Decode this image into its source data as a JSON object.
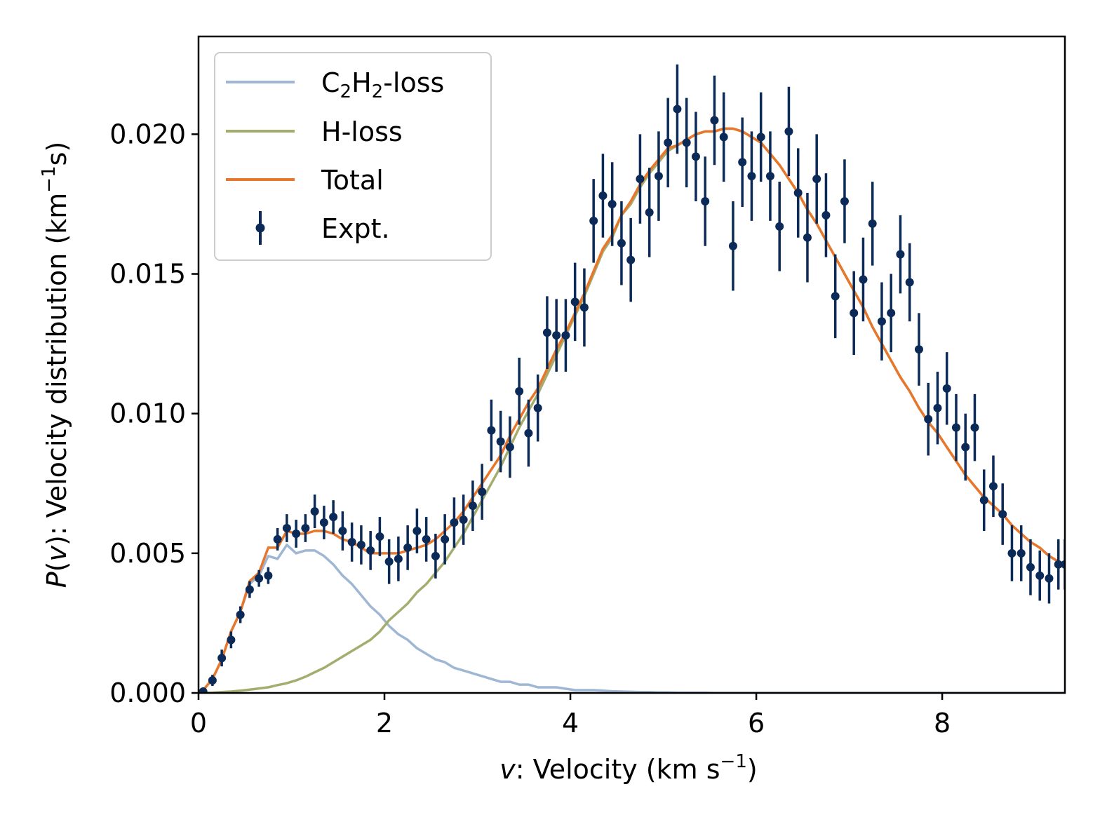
{
  "chart_data": {
    "type": "line",
    "title": "",
    "xlabel_italic": "v",
    "xlabel_rest": ": Velocity (km s",
    "xlabel_sup": "−1",
    "xlabel_close": ")",
    "ylabel_italic": "P",
    "ylabel_paren_open": "(",
    "ylabel_italic_v": "v",
    "ylabel_rest": "): Velocity distribution (km",
    "ylabel_sup": "−1",
    "ylabel_close": "s)",
    "xlim": [
      0,
      9.32
    ],
    "ylim": [
      0,
      0.0235
    ],
    "xticks": [
      0,
      2,
      4,
      6,
      8
    ],
    "xtick_labels": [
      "0",
      "2",
      "4",
      "6",
      "8"
    ],
    "yticks": [
      0,
      0.005,
      0.01,
      0.015,
      0.02
    ],
    "ytick_labels": [
      "0.000",
      "0.005",
      "0.010",
      "0.015",
      "0.020"
    ],
    "legend_position": "top-left",
    "x": [
      0.05,
      0.15,
      0.25,
      0.35,
      0.45,
      0.55,
      0.65,
      0.75,
      0.85,
      0.95,
      1.05,
      1.15,
      1.25,
      1.35,
      1.45,
      1.55,
      1.65,
      1.75,
      1.85,
      1.95,
      2.05,
      2.15,
      2.25,
      2.35,
      2.45,
      2.55,
      2.65,
      2.75,
      2.85,
      2.95,
      3.05,
      3.15,
      3.25,
      3.35,
      3.45,
      3.55,
      3.65,
      3.75,
      3.85,
      3.95,
      4.05,
      4.15,
      4.25,
      4.35,
      4.45,
      4.55,
      4.65,
      4.75,
      4.85,
      4.95,
      5.05,
      5.15,
      5.25,
      5.35,
      5.45,
      5.55,
      5.65,
      5.75,
      5.85,
      5.95,
      6.05,
      6.15,
      6.25,
      6.35,
      6.45,
      6.55,
      6.65,
      6.75,
      6.85,
      6.95,
      7.05,
      7.15,
      7.25,
      7.35,
      7.45,
      7.55,
      7.65,
      7.75,
      7.85,
      7.95,
      8.05,
      8.15,
      8.25,
      8.35,
      8.45,
      8.55,
      8.65,
      8.75,
      8.85,
      8.95,
      9.05,
      9.15,
      9.25,
      9.32
    ],
    "series": [
      {
        "name": "C₂H₂-loss",
        "label_main": "C",
        "label_sub1": "2",
        "label_mid": "H",
        "label_sub2": "2",
        "label_end": "-loss",
        "color": "#9fb7d4",
        "values": [
          0.0001,
          0.0005,
          0.0012,
          0.0022,
          0.0029,
          0.0039,
          0.0042,
          0.0049,
          0.0048,
          0.0053,
          0.005,
          0.0051,
          0.0051,
          0.0049,
          0.0046,
          0.0042,
          0.0039,
          0.0035,
          0.0031,
          0.0028,
          0.0024,
          0.0021,
          0.0019,
          0.0016,
          0.0014,
          0.0012,
          0.0011,
          0.0009,
          0.0008,
          0.0007,
          0.0006,
          0.0005,
          0.0004,
          0.0004,
          0.0003,
          0.0003,
          0.0002,
          0.0002,
          0.0002,
          0.00015,
          0.0001,
          0.0001,
          0.0001,
          8e-05,
          6e-05,
          5e-05,
          4e-05,
          3e-05,
          3e-05,
          2e-05,
          2e-05,
          1e-05,
          1e-05,
          1e-05,
          1e-05,
          0,
          0,
          0,
          0,
          0,
          0,
          0,
          0,
          0,
          0,
          0,
          0,
          0,
          0,
          0,
          0,
          0,
          0,
          0,
          0,
          0,
          0,
          0,
          0,
          0,
          0,
          0,
          0,
          0,
          0,
          0,
          0,
          0,
          0,
          0,
          0,
          0,
          0,
          0
        ]
      },
      {
        "name": "H-loss",
        "label": "H-loss",
        "color": "#a5ad6e",
        "values": [
          0,
          1e-05,
          3e-05,
          5e-05,
          8e-05,
          0.00012,
          0.00016,
          0.0002,
          0.00028,
          0.00035,
          0.00045,
          0.00058,
          0.00074,
          0.0009,
          0.0011,
          0.0013,
          0.0015,
          0.0017,
          0.0019,
          0.0022,
          0.0026,
          0.0029,
          0.0032,
          0.0036,
          0.0039,
          0.0043,
          0.0047,
          0.0052,
          0.0057,
          0.0063,
          0.0069,
          0.0075,
          0.0081,
          0.0088,
          0.0095,
          0.0101,
          0.0107,
          0.0114,
          0.0121,
          0.0128,
          0.0135,
          0.0142,
          0.015,
          0.0158,
          0.0163,
          0.0171,
          0.0175,
          0.0181,
          0.0186,
          0.019,
          0.0194,
          0.0196,
          0.0198,
          0.02,
          0.0201,
          0.0201,
          0.0202,
          0.0202,
          0.0201,
          0.0199,
          0.0197,
          0.0193,
          0.0189,
          0.0184,
          0.0179,
          0.0173,
          0.0168,
          0.0162,
          0.0156,
          0.015,
          0.0144,
          0.0138,
          0.0131,
          0.0125,
          0.0119,
          0.0113,
          0.0108,
          0.0102,
          0.0097,
          0.0093,
          0.0088,
          0.0083,
          0.0078,
          0.0074,
          0.007,
          0.0067,
          0.0064,
          0.006,
          0.0057,
          0.0054,
          0.0052,
          0.0049,
          0.0047,
          0.0046
        ]
      },
      {
        "name": "Total",
        "label": "Total",
        "color": "#e8762b",
        "values": [
          0.0001,
          0.0005,
          0.0012,
          0.0022,
          0.0029,
          0.004,
          0.0043,
          0.0052,
          0.0052,
          0.0058,
          0.0057,
          0.0057,
          0.0058,
          0.0058,
          0.0057,
          0.0055,
          0.0054,
          0.0052,
          0.005,
          0.005,
          0.005,
          0.005,
          0.0051,
          0.0052,
          0.0053,
          0.0055,
          0.0058,
          0.0061,
          0.0065,
          0.007,
          0.0075,
          0.008,
          0.0085,
          0.0092,
          0.0098,
          0.0104,
          0.0109,
          0.0116,
          0.0123,
          0.0129,
          0.0136,
          0.0143,
          0.0151,
          0.0159,
          0.0164,
          0.0171,
          0.0176,
          0.0182,
          0.0187,
          0.0191,
          0.0195,
          0.0196,
          0.0198,
          0.02,
          0.0201,
          0.0201,
          0.0202,
          0.0202,
          0.0201,
          0.0199,
          0.0197,
          0.0193,
          0.0189,
          0.0184,
          0.0179,
          0.0173,
          0.0168,
          0.0162,
          0.0156,
          0.015,
          0.0144,
          0.0138,
          0.0131,
          0.0125,
          0.0119,
          0.0113,
          0.0108,
          0.0102,
          0.0097,
          0.0093,
          0.0088,
          0.0083,
          0.0078,
          0.0074,
          0.007,
          0.0067,
          0.0064,
          0.006,
          0.0057,
          0.0054,
          0.0052,
          0.0049,
          0.0047,
          0.0046
        ]
      },
      {
        "name": "Expt.",
        "label": "Expt.",
        "color": "#0b2a57",
        "values": [
          5e-05,
          0.00045,
          0.00125,
          0.0019,
          0.0028,
          0.0037,
          0.0041,
          0.0042,
          0.0055,
          0.0059,
          0.0057,
          0.0059,
          0.0065,
          0.0061,
          0.0063,
          0.0058,
          0.0054,
          0.0053,
          0.0051,
          0.0056,
          0.0047,
          0.0048,
          0.0052,
          0.0058,
          0.0055,
          0.0049,
          0.0055,
          0.0061,
          0.0062,
          0.0067,
          0.0072,
          0.0094,
          0.009,
          0.0088,
          0.0108,
          0.0093,
          0.0102,
          0.0129,
          0.0128,
          0.0128,
          0.014,
          0.0138,
          0.0169,
          0.0178,
          0.0175,
          0.0161,
          0.0155,
          0.0184,
          0.0172,
          0.0185,
          0.0197,
          0.0209,
          0.0197,
          0.0192,
          0.0176,
          0.0205,
          0.0199,
          0.016,
          0.019,
          0.0185,
          0.0199,
          0.0185,
          0.0167,
          0.0201,
          0.0179,
          0.0163,
          0.0184,
          0.0171,
          0.0142,
          0.0176,
          0.0136,
          0.0148,
          0.0168,
          0.0133,
          0.0136,
          0.0157,
          0.0147,
          0.0123,
          0.0098,
          0.0102,
          0.0109,
          0.0095,
          0.0088,
          0.0095,
          0.0069,
          0.0074,
          0.0064,
          0.005,
          0.005,
          0.0045,
          0.0042,
          0.0041,
          0.0046,
          0.0046
        ],
        "errors": [
          0.0001,
          0.0002,
          0.0003,
          0.0003,
          0.0003,
          0.0003,
          0.0003,
          0.0003,
          0.0004,
          0.0005,
          0.0005,
          0.0005,
          0.0006,
          0.0006,
          0.0006,
          0.0007,
          0.0007,
          0.0007,
          0.0007,
          0.0007,
          0.0008,
          0.0008,
          0.0008,
          0.0008,
          0.0008,
          0.0008,
          0.0009,
          0.0009,
          0.0009,
          0.0009,
          0.001,
          0.0011,
          0.0011,
          0.0011,
          0.0012,
          0.0012,
          0.0012,
          0.0013,
          0.0013,
          0.0013,
          0.0014,
          0.0014,
          0.0015,
          0.0015,
          0.0015,
          0.0015,
          0.0015,
          0.0016,
          0.0016,
          0.0016,
          0.0016,
          0.0016,
          0.0016,
          0.0016,
          0.0016,
          0.0016,
          0.0016,
          0.0016,
          0.0016,
          0.0016,
          0.0016,
          0.0016,
          0.0016,
          0.0016,
          0.0016,
          0.0016,
          0.0016,
          0.0015,
          0.0015,
          0.0015,
          0.0015,
          0.0015,
          0.0015,
          0.0014,
          0.0014,
          0.0014,
          0.0014,
          0.0013,
          0.0013,
          0.0013,
          0.0013,
          0.0012,
          0.0012,
          0.0012,
          0.0011,
          0.0011,
          0.0011,
          0.001,
          0.001,
          0.001,
          0.0009,
          0.0009,
          0.0009,
          0.0009
        ]
      }
    ]
  }
}
